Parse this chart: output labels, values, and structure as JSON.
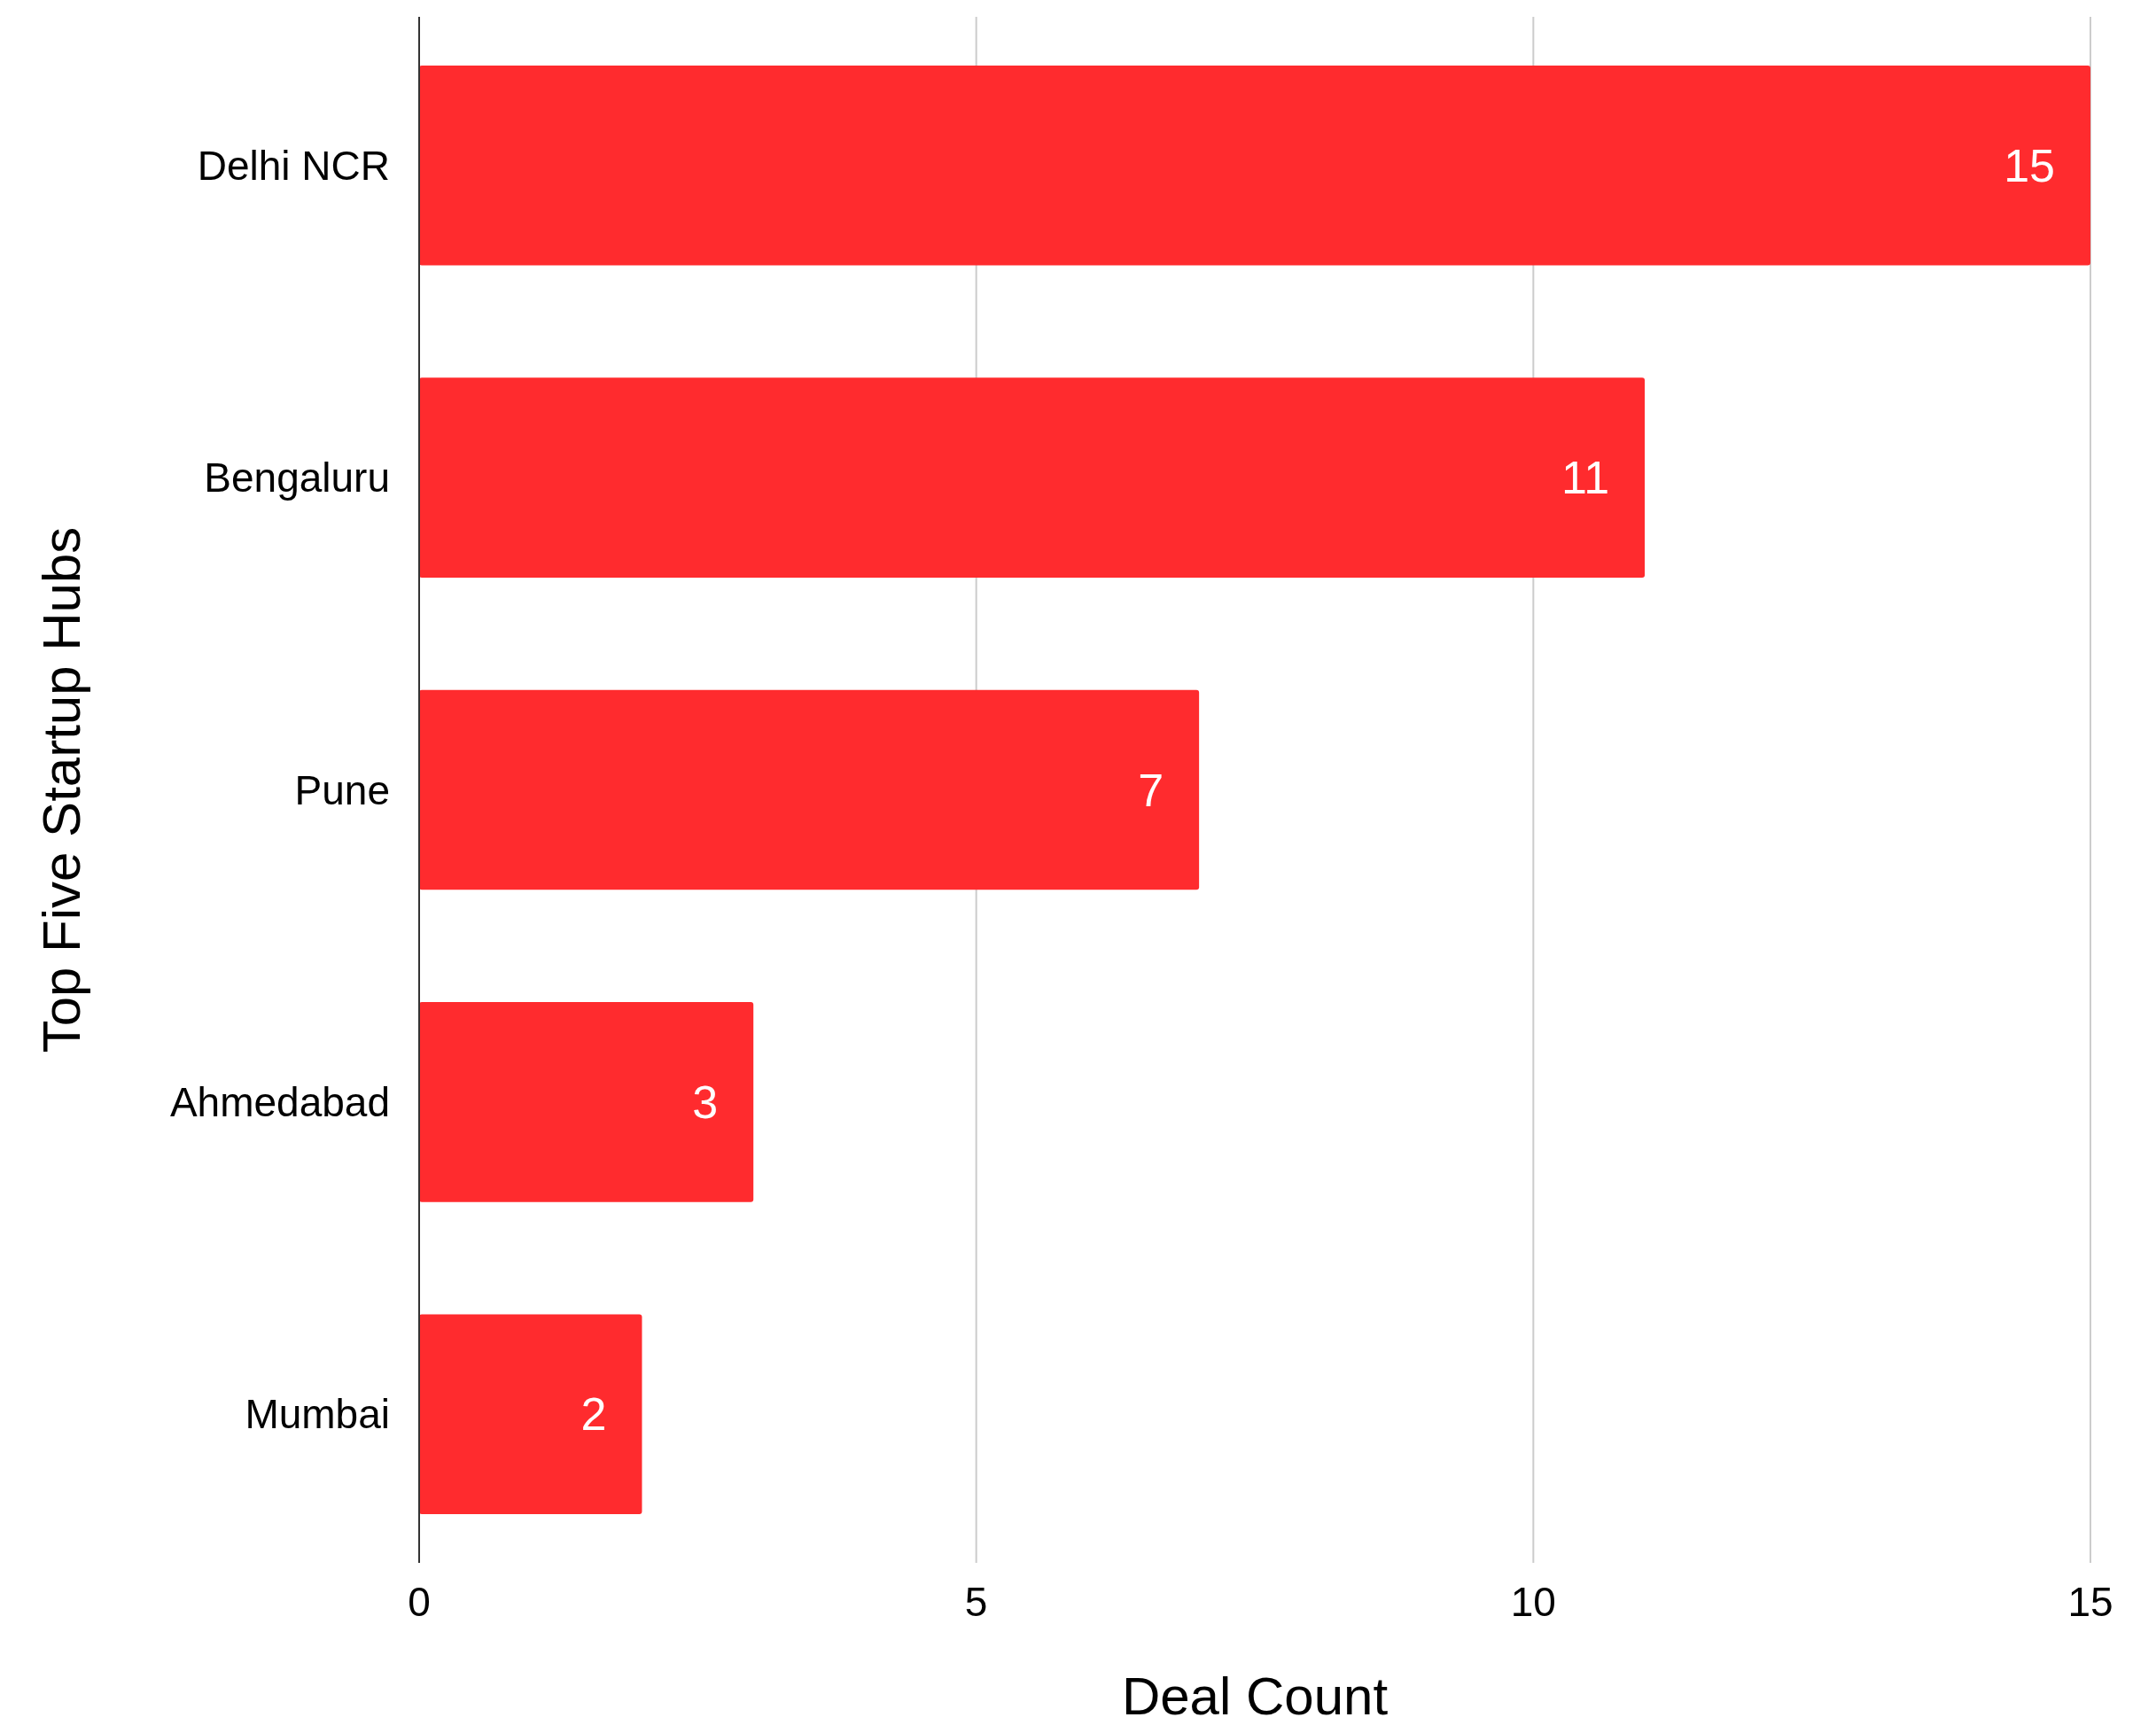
{
  "chart_data": {
    "type": "bar",
    "orientation": "horizontal",
    "ylabel": "Top Five Startup Hubs",
    "xlabel": "Deal Count",
    "categories": [
      "Delhi NCR",
      "Bengaluru",
      "Pune",
      "Ahmedabad",
      "Mumbai"
    ],
    "values": [
      15,
      11,
      7,
      3,
      2
    ],
    "color": "#ff2b2e",
    "xlim": [
      0,
      15
    ],
    "xticks": [
      0,
      5,
      10,
      15
    ],
    "grid": "x",
    "data_labels": true
  }
}
